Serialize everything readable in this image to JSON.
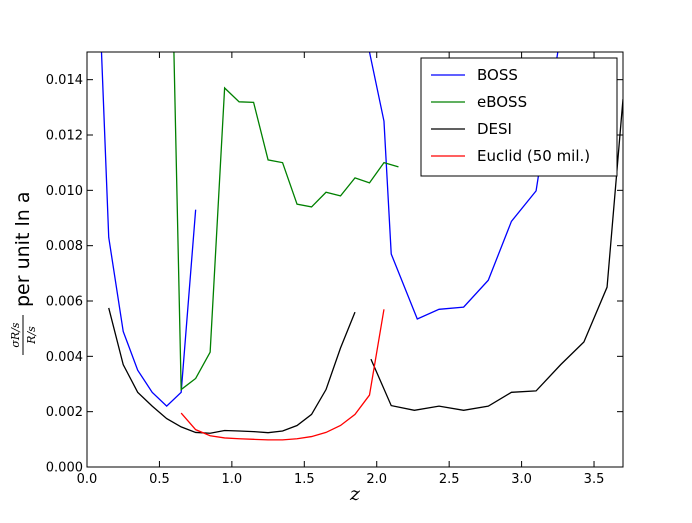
{
  "chart_data": {
    "type": "line",
    "title": "",
    "xlabel": "z",
    "ylabel": {
      "numerator": "σR/s",
      "denominator": "R/s",
      "suffix": "per unit ln a"
    },
    "xlim": [
      0.0,
      3.7
    ],
    "ylim": [
      0.0,
      0.015
    ],
    "xticks": [
      0.0,
      0.5,
      1.0,
      1.5,
      2.0,
      2.5,
      3.0,
      3.5
    ],
    "xtick_labels": [
      "0.0",
      "0.5",
      "1.0",
      "1.5",
      "2.0",
      "2.5",
      "3.0",
      "3.5"
    ],
    "yticks": [
      0.0,
      0.002,
      0.004,
      0.006,
      0.008,
      0.01,
      0.012,
      0.014
    ],
    "ytick_labels": [
      "0.000",
      "0.002",
      "0.004",
      "0.006",
      "0.008",
      "0.010",
      "0.012",
      "0.014"
    ],
    "grid": false,
    "legend_position": "top-right",
    "series": [
      {
        "name": "BOSS",
        "color": "#0000ff",
        "segments": [
          [
            [
              0.1,
              0.015
            ],
            [
              0.15,
              0.0083
            ],
            [
              0.25,
              0.0049
            ],
            [
              0.35,
              0.0035
            ],
            [
              0.45,
              0.0027
            ],
            [
              0.55,
              0.0022
            ],
            [
              0.65,
              0.0027
            ],
            [
              0.75,
              0.0093
            ]
          ],
          [
            [
              1.95,
              0.015
            ],
            [
              2.05,
              0.0125
            ],
            [
              2.1,
              0.0077
            ],
            [
              2.28,
              0.00535
            ],
            [
              2.43,
              0.0057
            ],
            [
              2.6,
              0.00578
            ],
            [
              2.77,
              0.00675
            ],
            [
              2.93,
              0.00888
            ],
            [
              3.1,
              0.00998
            ],
            [
              3.25,
              0.015
            ]
          ]
        ]
      },
      {
        "name": "eBOSS",
        "color": "#008000",
        "segments": [
          [
            [
              0.6,
              0.015
            ],
            [
              0.65,
              0.0028
            ],
            [
              0.75,
              0.0032
            ],
            [
              0.85,
              0.00415
            ],
            [
              0.95,
              0.0137
            ],
            [
              1.05,
              0.0132
            ],
            [
              1.15,
              0.01318
            ],
            [
              1.25,
              0.0111
            ],
            [
              1.35,
              0.011
            ],
            [
              1.45,
              0.0095
            ],
            [
              1.55,
              0.0094
            ],
            [
              1.65,
              0.00993
            ],
            [
              1.75,
              0.0098
            ],
            [
              1.85,
              0.01045
            ],
            [
              1.95,
              0.01027
            ],
            [
              2.05,
              0.011
            ],
            [
              2.15,
              0.01085
            ]
          ]
        ]
      },
      {
        "name": "DESI",
        "color": "#000000",
        "segments": [
          [
            [
              0.15,
              0.00575
            ],
            [
              0.25,
              0.0037
            ],
            [
              0.35,
              0.0027
            ],
            [
              0.45,
              0.0022
            ],
            [
              0.55,
              0.00175
            ],
            [
              0.65,
              0.00145
            ],
            [
              0.75,
              0.00125
            ],
            [
              0.85,
              0.00122
            ],
            [
              0.95,
              0.00132
            ],
            [
              1.05,
              0.0013
            ],
            [
              1.15,
              0.00128
            ],
            [
              1.25,
              0.00124
            ],
            [
              1.35,
              0.0013
            ],
            [
              1.45,
              0.0015
            ],
            [
              1.55,
              0.0019
            ],
            [
              1.65,
              0.0028
            ],
            [
              1.75,
              0.0043
            ],
            [
              1.85,
              0.0056
            ]
          ],
          [
            [
              1.96,
              0.0039
            ],
            [
              2.1,
              0.00222
            ],
            [
              2.26,
              0.00205
            ],
            [
              2.43,
              0.0022
            ],
            [
              2.6,
              0.00205
            ],
            [
              2.77,
              0.0022
            ],
            [
              2.93,
              0.0027
            ],
            [
              3.1,
              0.00275
            ],
            [
              3.27,
              0.0037
            ],
            [
              3.43,
              0.00452
            ],
            [
              3.59,
              0.0065
            ],
            [
              3.7,
              0.0133
            ]
          ]
        ]
      },
      {
        "name": "Euclid (50 mil.)",
        "color": "#ff0000",
        "segments": [
          [
            [
              0.65,
              0.00195
            ],
            [
              0.75,
              0.00135
            ],
            [
              0.85,
              0.00113
            ],
            [
              0.95,
              0.00105
            ],
            [
              1.05,
              0.00102
            ],
            [
              1.15,
              0.001
            ],
            [
              1.25,
              0.00098
            ],
            [
              1.35,
              0.00098
            ],
            [
              1.45,
              0.00102
            ],
            [
              1.55,
              0.0011
            ],
            [
              1.65,
              0.00125
            ],
            [
              1.75,
              0.0015
            ],
            [
              1.85,
              0.0019
            ],
            [
              1.95,
              0.0026
            ],
            [
              2.05,
              0.0057
            ]
          ]
        ]
      }
    ]
  }
}
